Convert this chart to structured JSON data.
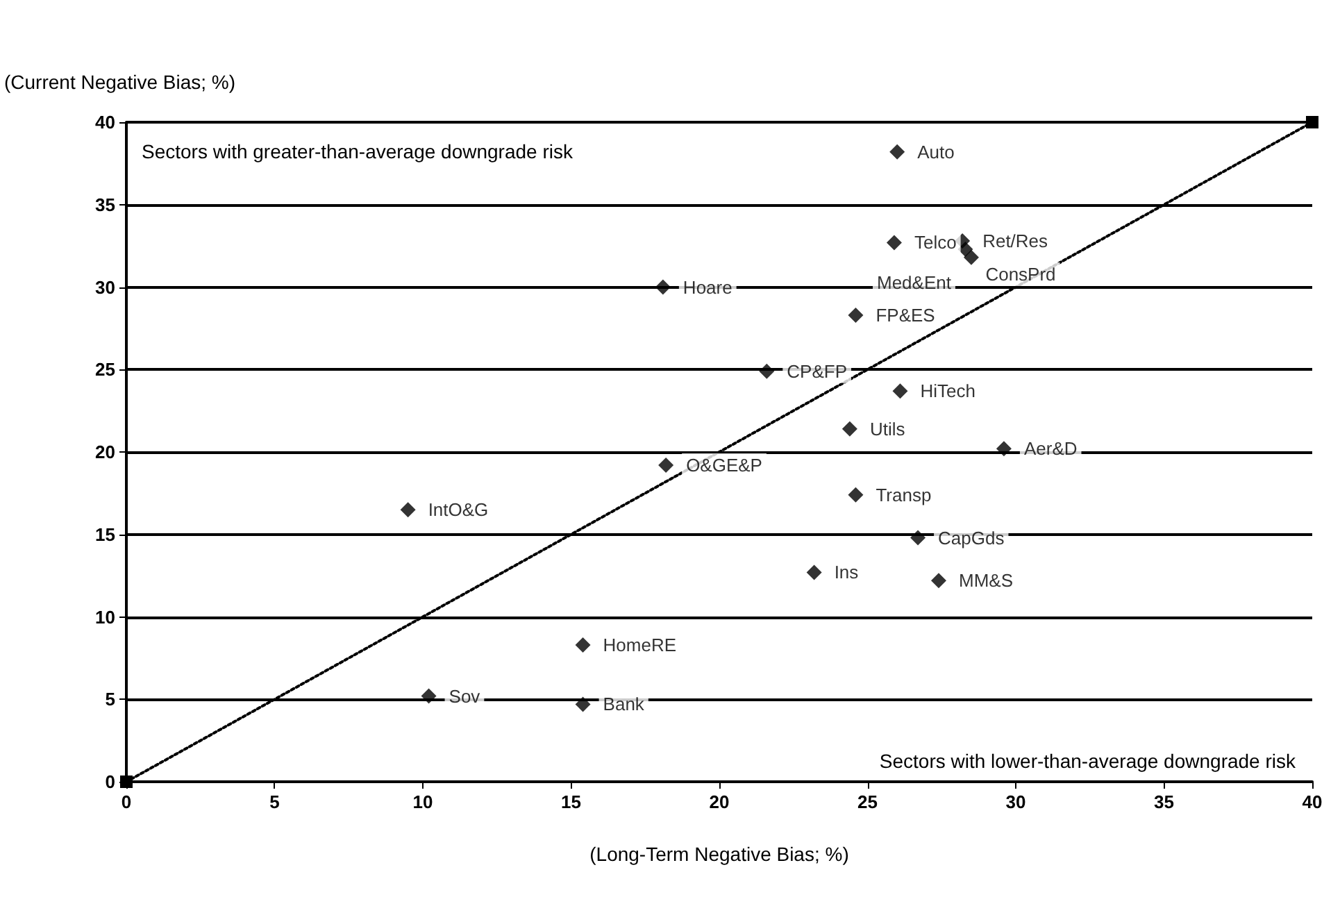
{
  "chart_data": {
    "type": "scatter",
    "xlabel": "(Long-Term Negative Bias; %)",
    "ylabel": "(Current Negative Bias; %)",
    "xlim": [
      0,
      40
    ],
    "xticks": [
      0,
      5,
      10,
      15,
      20,
      25,
      30,
      35,
      40
    ],
    "ylim": [
      0,
      40
    ],
    "yticks": [
      0,
      5,
      10,
      15,
      20,
      25,
      30,
      35,
      40
    ],
    "grid": "y",
    "annotations": [
      "Sectors with greater-than-average downgrade risk",
      "Sectors with lower-than-average downgrade risk"
    ],
    "series": [
      {
        "color": "#000000",
        "marker": "diamond",
        "x": [
          26.0,
          25.9,
          28.2,
          28.3,
          28.5,
          18.1,
          24.6,
          21.6,
          26.1,
          24.4,
          29.6,
          18.2,
          24.6,
          26.7,
          23.2,
          27.4,
          9.5,
          15.4,
          10.2,
          15.4
        ],
        "values": [
          38.2,
          32.7,
          32.8,
          32.3,
          31.8,
          30.0,
          28.3,
          24.9,
          23.7,
          21.4,
          20.2,
          19.2,
          17.4,
          14.8,
          12.7,
          12.2,
          16.5,
          8.3,
          5.2,
          4.7
        ],
        "value_labels": [
          "Auto",
          "Telco",
          "Ret/Res",
          "ConsPrd",
          "Med&Ent",
          "Hoare",
          "FP&ES",
          "CP&FP",
          "HiTech",
          "Utils",
          "Aer&D",
          "O&GE&P",
          "Transp",
          "CapGds",
          "Ins",
          "MM&S",
          "IntO&G",
          "HomeRE",
          "Sov",
          "Bank"
        ]
      },
      {
        "type": "line",
        "color": "#000000",
        "marker": "square",
        "line_style": "dotted",
        "x": [
          0,
          40
        ],
        "values": [
          0,
          40
        ]
      }
    ]
  }
}
